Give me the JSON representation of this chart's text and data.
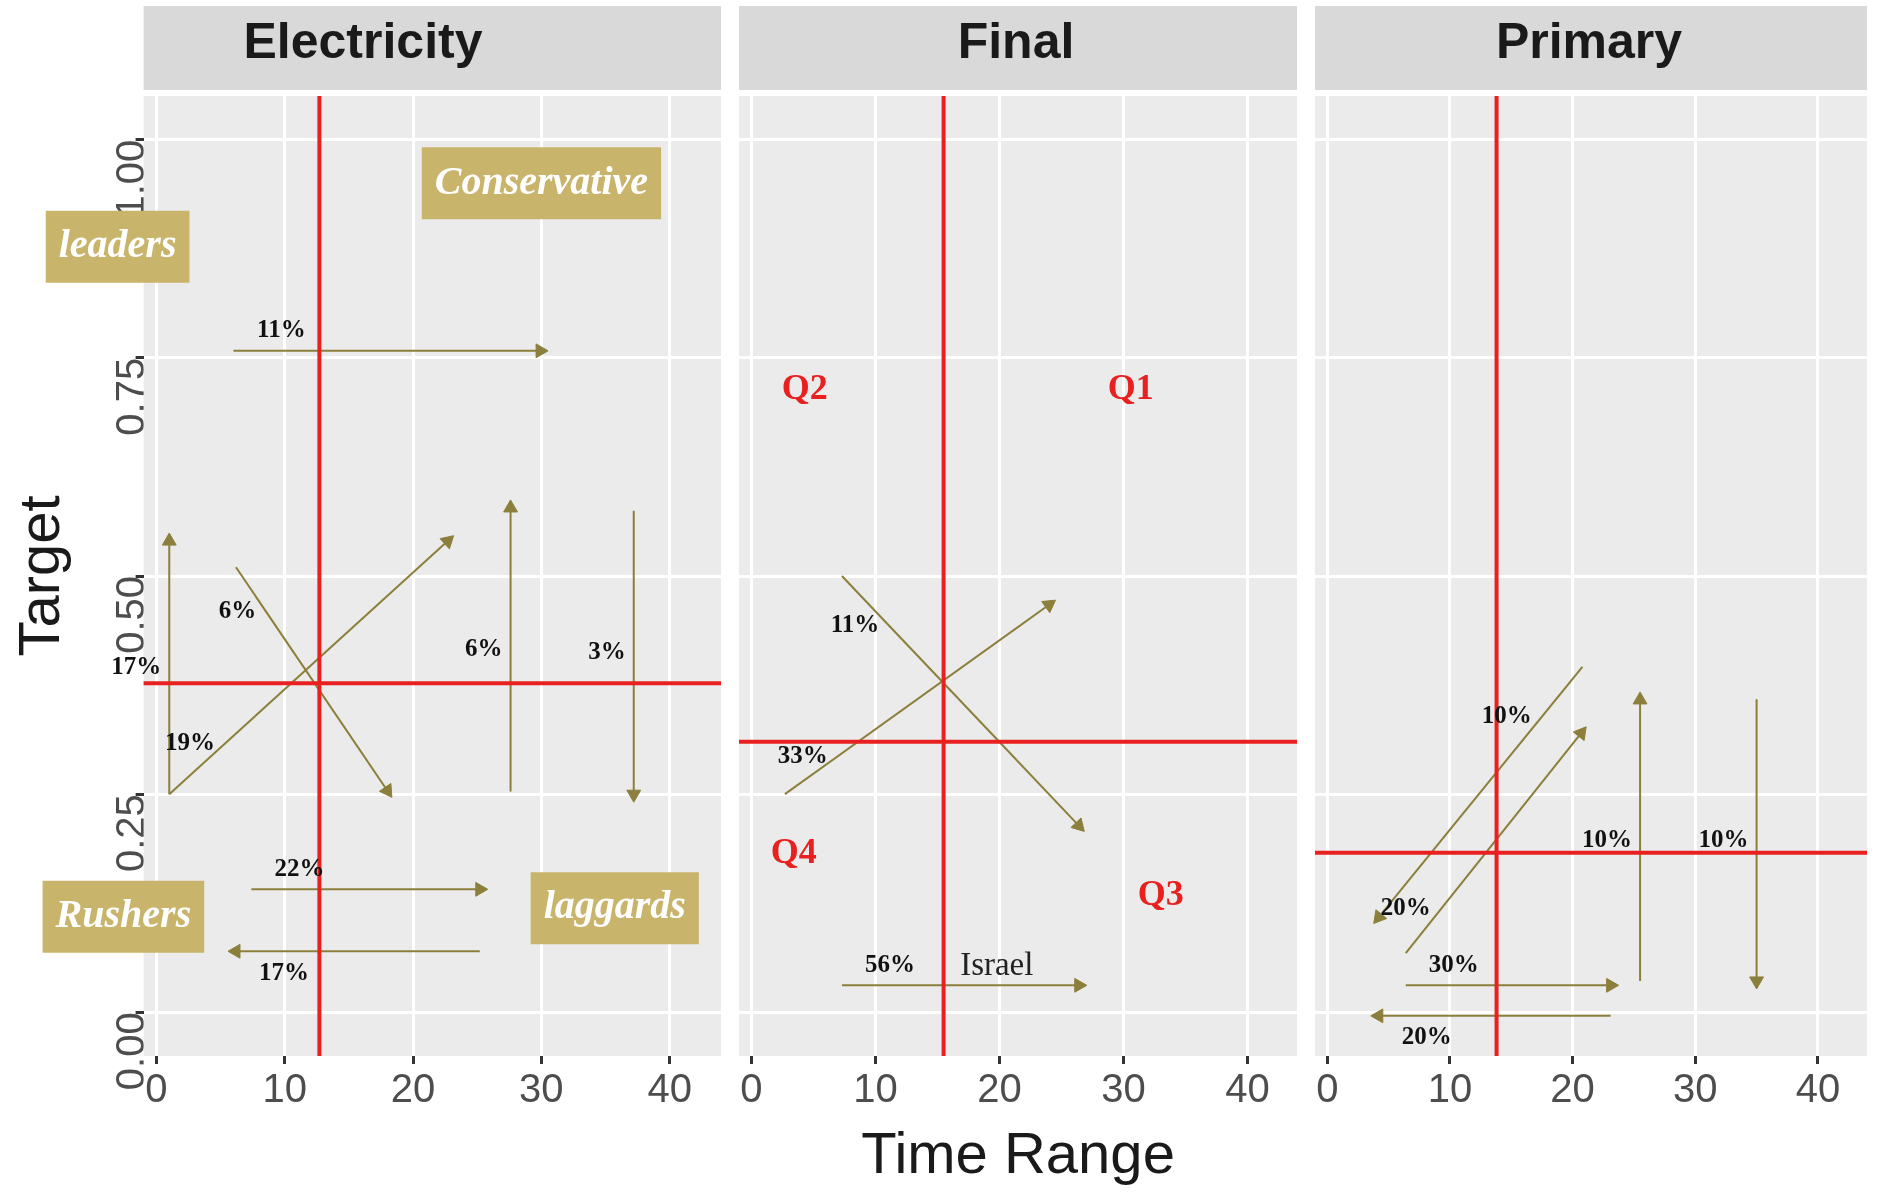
{
  "chart_data": [
    {
      "type": "line",
      "title": "Electricity",
      "ylabel": "Target",
      "xlim": [
        -1,
        44
      ],
      "ylim": [
        -0.05,
        1.05
      ],
      "xticks": [
        0,
        10,
        20,
        30,
        40
      ],
      "yticks": [
        {
          "value": 0,
          "label": "0.00"
        },
        {
          "value": 0.25,
          "label": "0.25"
        },
        {
          "value": 0.5,
          "label": "0.50"
        },
        {
          "value": 0.75,
          "label": "0.75"
        },
        {
          "value": 1,
          "label": "1.00"
        }
      ],
      "grid": true,
      "legend": false,
      "ref_lines": [
        {
          "axis": "x",
          "value": 12.7,
          "color": "#e8201f"
        },
        {
          "axis": "y",
          "value": 0.377,
          "color": "#e8201f"
        }
      ],
      "series": [
        {
          "name": "11%",
          "color": "#8c7f3c",
          "x": [
            6,
            29.9
          ],
          "values": [
            0.758,
            0.758
          ]
        },
        {
          "name": "17%",
          "color": "#8c7f3c",
          "x": [
            1,
            1
          ],
          "values": [
            0.25,
            0.54
          ]
        },
        {
          "name": "6%",
          "color": "#8c7f3c",
          "x": [
            6.2,
            18
          ],
          "values": [
            0.51,
            0.254
          ]
        },
        {
          "name": "19%",
          "color": "#8c7f3c",
          "x": [
            1,
            22.7
          ],
          "values": [
            0.25,
            0.54
          ]
        },
        {
          "name": "6%",
          "color": "#8c7f3c",
          "x": [
            27.6,
            27.6
          ],
          "values": [
            0.253,
            0.578
          ]
        },
        {
          "name": "3%",
          "color": "#8c7f3c",
          "x": [
            37.2,
            37.2
          ],
          "values": [
            0.574,
            0.25
          ]
        },
        {
          "name": "22%",
          "color": "#8c7f3c",
          "x": [
            7.4,
            25.2
          ],
          "values": [
            0.141,
            0.141
          ]
        },
        {
          "name": "17%",
          "color": "#8c7f3c",
          "x": [
            25.2,
            6.2
          ],
          "values": [
            0.07,
            0.07
          ]
        }
      ],
      "annotations": [
        "Conservative",
        "leaders",
        "Rushers",
        "laggards"
      ]
    },
    {
      "type": "line",
      "title": "Final",
      "xlabel": "Time Range",
      "xlim": [
        -1,
        44
      ],
      "ylim": [
        -0.05,
        1.05
      ],
      "xticks": [
        0,
        10,
        20,
        30,
        40
      ],
      "yticks": [
        0,
        0.25,
        0.5,
        0.75,
        1
      ],
      "tick_labels": "x",
      "grid": true,
      "legend": false,
      "ref_lines": [
        {
          "axis": "x",
          "value": 15.5,
          "color": "#e8201f"
        },
        {
          "axis": "y",
          "value": 0.31,
          "color": "#e8201f"
        }
      ],
      "series": [
        {
          "name": "11%",
          "color": "#8c7f3c",
          "x": [
            7.3,
            26.4
          ],
          "values": [
            0.5,
            0.214
          ]
        },
        {
          "name": "33%",
          "color": "#8c7f3c",
          "x": [
            2.7,
            24
          ],
          "values": [
            0.25,
            0.467
          ]
        },
        {
          "name": "56%",
          "color": "#8c7f3c",
          "x": [
            7.3,
            26.4
          ],
          "values": [
            0.031,
            0.031
          ]
        }
      ],
      "annotations": [
        "Q2",
        "Q1",
        "Q4",
        "Q3",
        "Israel"
      ]
    },
    {
      "type": "line",
      "title": "Primary",
      "xlim": [
        -1,
        44
      ],
      "ylim": [
        -0.05,
        1.05
      ],
      "xticks": [
        0,
        10,
        20,
        30,
        40
      ],
      "yticks": [
        0,
        0.25,
        0.5,
        0.75,
        1
      ],
      "tick_labels": "x",
      "grid": true,
      "legend": false,
      "ref_lines": [
        {
          "axis": "x",
          "value": 13.8,
          "color": "#e8201f"
        },
        {
          "axis": "y",
          "value": 0.183,
          "color": "#e8201f"
        }
      ],
      "series": [
        {
          "name": "10%",
          "color": "#8c7f3c",
          "x": [
            20.8,
            4.2
          ],
          "values": [
            0.396,
            0.109
          ]
        },
        {
          "name": "20%",
          "color": "#8c7f3c",
          "x": [
            6.4,
            20.7
          ],
          "values": [
            0.068,
            0.32
          ]
        },
        {
          "name": "10%",
          "color": "#8c7f3c",
          "x": [
            25.5,
            25.5
          ],
          "values": [
            0.036,
            0.358
          ]
        },
        {
          "name": "10%",
          "color": "#8c7f3c",
          "x": [
            35,
            35
          ],
          "values": [
            0.358,
            0.036
          ]
        },
        {
          "name": "30%",
          "color": "#8c7f3c",
          "x": [
            6.4,
            23.1
          ],
          "values": [
            0.031,
            0.031
          ]
        },
        {
          "name": "20%",
          "color": "#8c7f3c",
          "x": [
            23.1,
            4.2
          ],
          "values": [
            -0.004,
            -0.004
          ]
        }
      ]
    }
  ]
}
